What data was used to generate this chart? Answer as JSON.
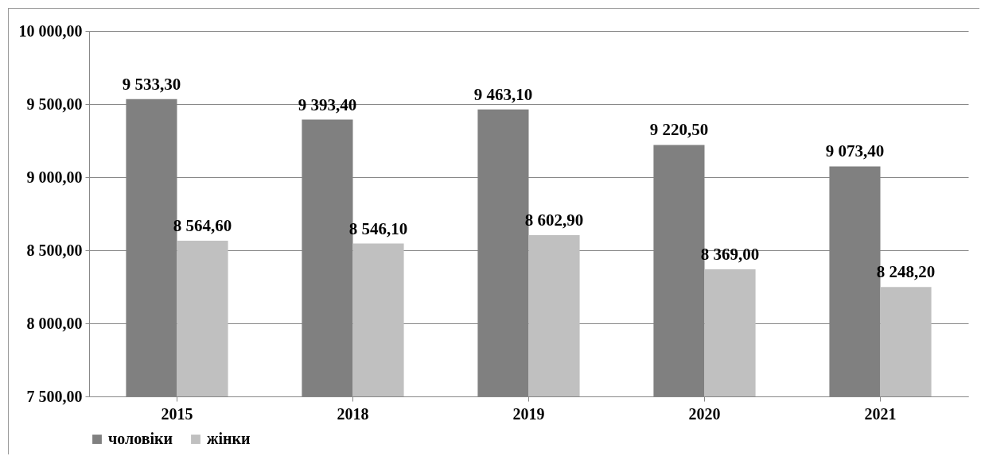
{
  "chart_data": {
    "type": "bar",
    "categories": [
      "2015",
      "2018",
      "2019",
      "2020",
      "2021"
    ],
    "series": [
      {
        "name": "чоловіки",
        "color": "#808080",
        "values": [
          9533.3,
          9393.4,
          9463.1,
          9220.5,
          9073.4
        ],
        "value_labels": [
          "9 533,30",
          "9 393,40",
          "9 463,10",
          "9 220,50",
          "9 073,40"
        ]
      },
      {
        "name": "жінки",
        "color": "#c0c0c0",
        "values": [
          8564.6,
          8546.1,
          8602.9,
          8369.0,
          8248.2
        ],
        "value_labels": [
          "8 564,60",
          "8 546,10",
          "8 602,90",
          "8 369,00",
          "8 248,20"
        ]
      }
    ],
    "ylim": [
      7500,
      10000
    ],
    "yticks": [
      {
        "value": 7500,
        "label": "7 500,00"
      },
      {
        "value": 8000,
        "label": "8 000,00"
      },
      {
        "value": 8500,
        "label": "8 500,00"
      },
      {
        "value": 9000,
        "label": "9 000,00"
      },
      {
        "value": 9500,
        "label": "9 500,00"
      },
      {
        "value": 10000,
        "label": "10 000,00"
      }
    ],
    "grid": "y",
    "legend": "bottom"
  }
}
